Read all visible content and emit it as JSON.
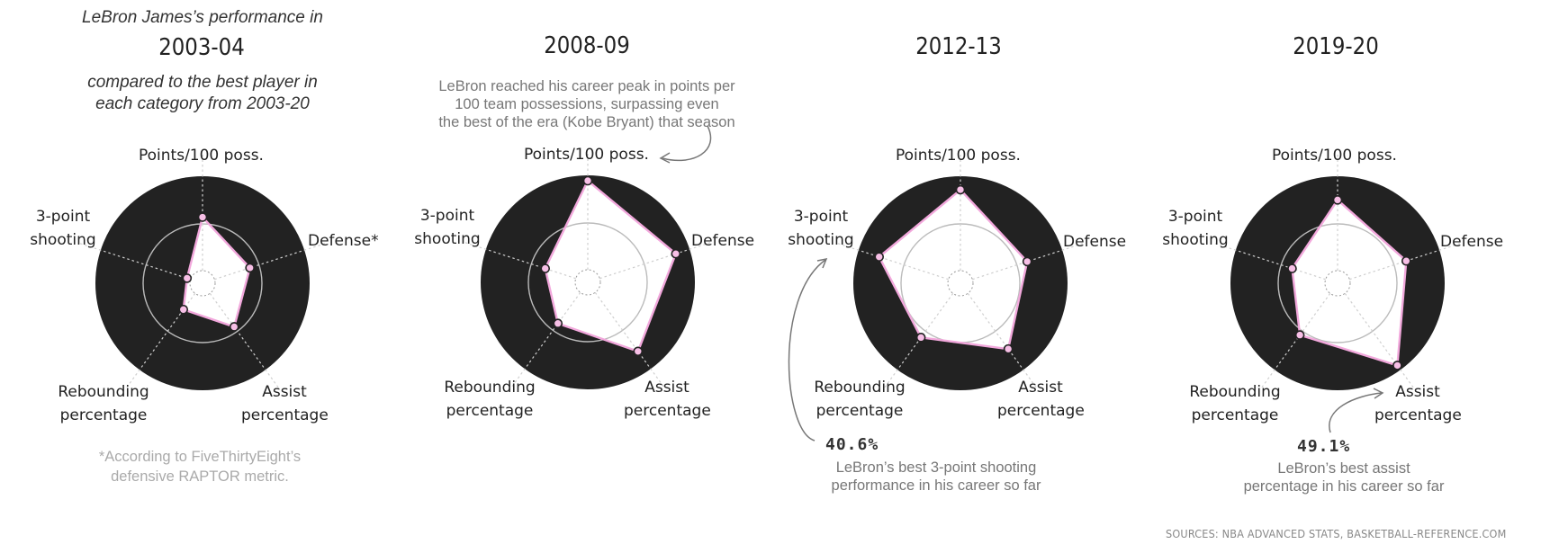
{
  "intro": {
    "line1": "LeBron James’s performance in",
    "line2a": "compared to the best player in",
    "line2b": "each category from 2003-20"
  },
  "chart_data": {
    "type": "radar",
    "axes": [
      "Points/100 poss.",
      "Defense",
      "Assist percentage",
      "Rebounding percentage",
      "3-point shooting"
    ],
    "value_scale": "share of the best player in each category from 2003-20, 0 to 1",
    "panels": [
      {
        "season": "2003-04",
        "axis_labels": {
          "points": "Points/100 poss.",
          "defense": "Defense*",
          "assist1": "Assist",
          "assist2": "percentage",
          "rebound1": "Rebounding",
          "rebound2": "percentage",
          "three1": "3-point",
          "three2": "shooting"
        },
        "values": [
          0.65,
          0.49,
          0.53,
          0.32,
          0.16
        ]
      },
      {
        "season": "2008-09",
        "axis_labels": {
          "points": "Points/100 poss.",
          "defense": "Defense",
          "assist1": "Assist",
          "assist2": "percentage",
          "rebound1": "Rebounding",
          "rebound2": "percentage",
          "three1": "3-point",
          "three2": "shooting"
        },
        "values": [
          1.0,
          0.91,
          0.84,
          0.5,
          0.44
        ]
      },
      {
        "season": "2012-13",
        "axis_labels": {
          "points": "Points/100 poss.",
          "defense": "Defense",
          "assist1": "Assist",
          "assist2": "percentage",
          "rebound1": "Rebounding",
          "rebound2": "percentage",
          "three1": "3-point",
          "three2": "shooting"
        },
        "values": [
          0.92,
          0.69,
          0.8,
          0.66,
          0.84
        ]
      },
      {
        "season": "2019-20",
        "axis_labels": {
          "points": "Points/100 poss.",
          "defense": "Defense",
          "assist1": "Assist",
          "assist2": "percentage",
          "rebound1": "Rebounding",
          "rebound2": "percentage",
          "three1": "3-point",
          "three2": "shooting"
        },
        "values": [
          0.82,
          0.71,
          1.0,
          0.63,
          0.47
        ]
      }
    ]
  },
  "annotations": {
    "peak_points": [
      "LeBron reached his career peak in points per",
      "100 team possessions, surpassing even",
      "the best of the era (Kobe Bryant) that season"
    ],
    "three_value": "40.6%",
    "three_text": [
      "LeBron’s best 3-point shooting",
      "performance in his career so far"
    ],
    "assist_value": "49.1%",
    "assist_text": [
      "LeBron’s best assist",
      "percentage in his career so far"
    ]
  },
  "footnote": [
    "*According to FiveThirtyEight’s",
    "defensive RAPTOR metric."
  ],
  "source": "SOURCES: NBA ADVANCED STATS, BASKETBALL-REFERENCE.COM",
  "colors": {
    "disk": "#222222",
    "fill": "#ffffff",
    "stroke": "#f2a8dc",
    "point": "#f7bfe6",
    "guide": "#bbbbbb"
  }
}
